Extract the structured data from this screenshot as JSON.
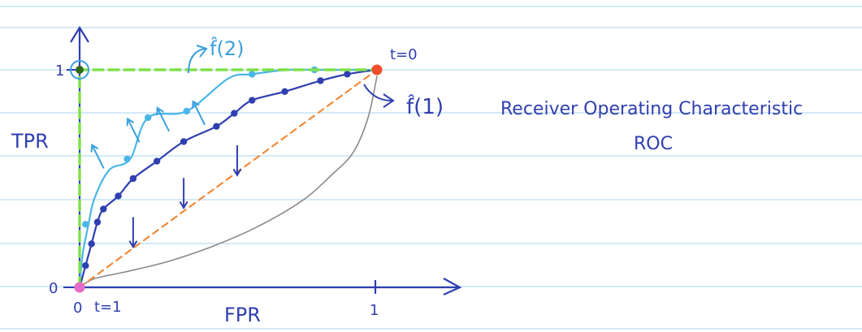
{
  "chart_data": {
    "type": "line",
    "title": "Receiver Operating Characteristic",
    "subtitle": "ROC",
    "xlabel": "FPR",
    "ylabel": "TPR",
    "xlim": [
      0,
      1
    ],
    "ylim": [
      0,
      1
    ],
    "grid": "horizontal ruled paper lines",
    "x_ticks": [
      {
        "value": 0,
        "label": "0"
      },
      {
        "value": 1,
        "label": "1"
      }
    ],
    "y_ticks": [
      {
        "value": 0,
        "label": "0"
      },
      {
        "value": 1,
        "label": "1"
      }
    ],
    "annotations": {
      "t_zero": "t=0",
      "t_one": "t=1",
      "f1_label": "f̂(1)",
      "f2_label": "f̂(2)"
    },
    "series": [
      {
        "key": "f1",
        "name": "f̂(1)",
        "color": "#2f3fb0",
        "x": [
          0.0,
          0.02,
          0.04,
          0.06,
          0.08,
          0.13,
          0.18,
          0.26,
          0.35,
          0.46,
          0.52,
          0.58,
          0.69,
          0.81,
          0.9,
          1.0
        ],
        "y": [
          0.0,
          0.1,
          0.2,
          0.3,
          0.36,
          0.42,
          0.5,
          0.58,
          0.67,
          0.74,
          0.8,
          0.86,
          0.9,
          0.95,
          0.98,
          1.0
        ],
        "markers": true
      },
      {
        "key": "f2",
        "name": "f̂(2)",
        "color": "#4ab6e8",
        "x": [
          0.0,
          0.01,
          0.03,
          0.05,
          0.1,
          0.17,
          0.23,
          0.36,
          0.5,
          0.58,
          0.7,
          0.8,
          0.9,
          1.0
        ],
        "y": [
          0.0,
          0.15,
          0.29,
          0.41,
          0.54,
          0.59,
          0.78,
          0.81,
          0.96,
          0.98,
          1.0,
          1.0,
          1.0,
          1.0
        ],
        "marker_x": [
          0.02,
          0.16,
          0.23,
          0.36,
          0.58,
          0.79
        ],
        "marker_y": [
          0.29,
          0.59,
          0.78,
          0.81,
          0.98,
          1.0
        ],
        "markers": true
      },
      {
        "key": "worse",
        "name": "",
        "color": "#8a8a8a",
        "x": [
          0.0,
          0.05,
          0.15,
          0.3,
          0.45,
          0.6,
          0.75,
          0.85,
          0.92,
          0.97,
          1.0
        ],
        "y": [
          0.0,
          0.04,
          0.07,
          0.12,
          0.19,
          0.28,
          0.4,
          0.52,
          0.62,
          0.78,
          0.97
        ],
        "markers": false
      },
      {
        "key": "random",
        "name": "",
        "color": "#f08a3a",
        "style": "dashed",
        "x": [
          0,
          1
        ],
        "y": [
          0,
          1
        ],
        "markers": false
      },
      {
        "key": "perfect",
        "name": "",
        "color": "#7ee04a",
        "style": "dashed",
        "x": [
          0,
          0,
          1
        ],
        "y": [
          0,
          1,
          1
        ],
        "markers": false
      }
    ],
    "arrows_toward_improvement": [
      [
        0.08,
        0.75
      ],
      [
        0.2,
        0.87
      ],
      [
        0.3,
        0.92
      ],
      [
        0.42,
        0.95
      ]
    ],
    "arrows_toward_worsening": [
      [
        0.18,
        0.42
      ],
      [
        0.35,
        0.6
      ],
      [
        0.53,
        0.75
      ]
    ],
    "endpoint_points": [
      {
        "x": 0,
        "y": 0,
        "color": "#e56cc8"
      },
      {
        "x": 1,
        "y": 1,
        "color": "#f24d2a"
      },
      {
        "x": 0,
        "y": 1,
        "color": "#2f6a1a"
      }
    ]
  }
}
